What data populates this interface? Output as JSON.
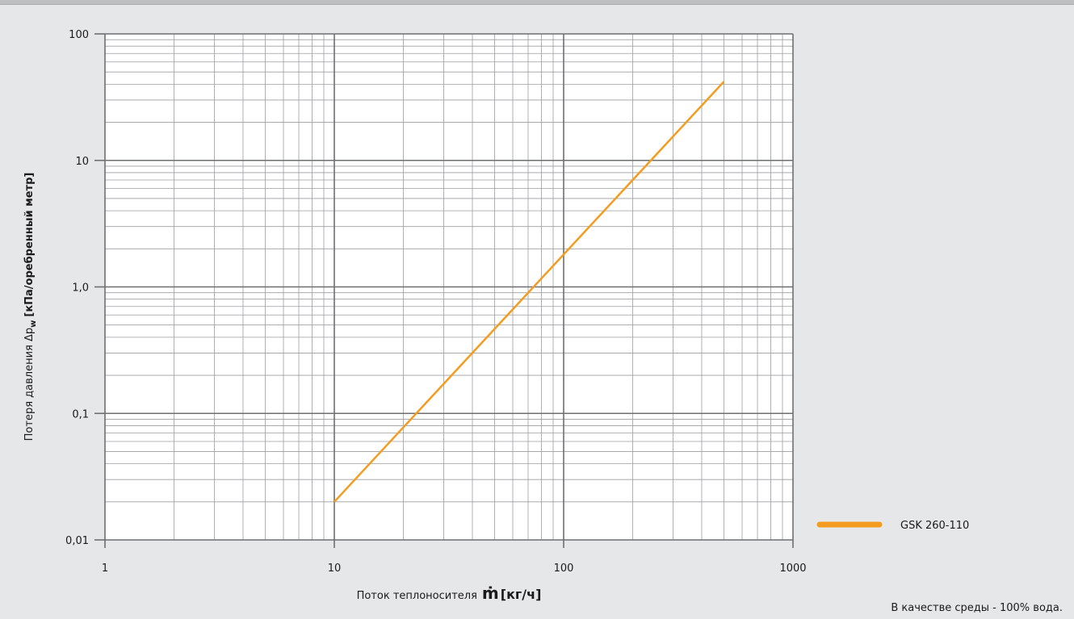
{
  "chart_data": {
    "type": "line",
    "x_scale": "log",
    "y_scale": "log",
    "xlim": [
      1,
      1000
    ],
    "ylim": [
      0.01,
      100
    ],
    "x_ticks": [
      "1",
      "10",
      "100",
      "1000"
    ],
    "y_ticks": [
      "0,01",
      "0,1",
      "1,0",
      "10",
      "100"
    ],
    "xlabel": "Поток теплоносителя",
    "xlabel_symbol": "ṁ",
    "xlabel_unit": "[кг/ч]",
    "ylabel_prefix": "Потеря давления Δp",
    "ylabel_sub": "w",
    "ylabel_unit": "[кПа/оребренный метр]",
    "grid": true,
    "legend_position": "bottom-right",
    "series": [
      {
        "name": "GSK 260-110",
        "color": "#f39c1f",
        "x": [
          10,
          500
        ],
        "y": [
          0.02,
          42
        ]
      }
    ]
  },
  "footnote": "В качестве среды - 100% вода."
}
